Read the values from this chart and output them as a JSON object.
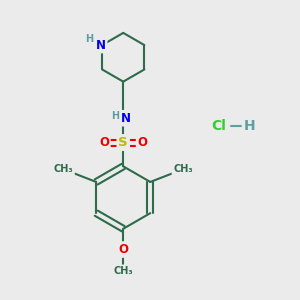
{
  "background_color": "#ebebeb",
  "bond_color": "#2d6b4a",
  "N_color": "#0000ee",
  "O_color": "#ee0000",
  "S_color": "#bbbb00",
  "Cl_color": "#33cc33",
  "H_color": "#5f9ea0",
  "line_width": 1.5,
  "font_size": 8.5,
  "xlim": [
    0,
    10
  ],
  "ylim": [
    0,
    10
  ]
}
